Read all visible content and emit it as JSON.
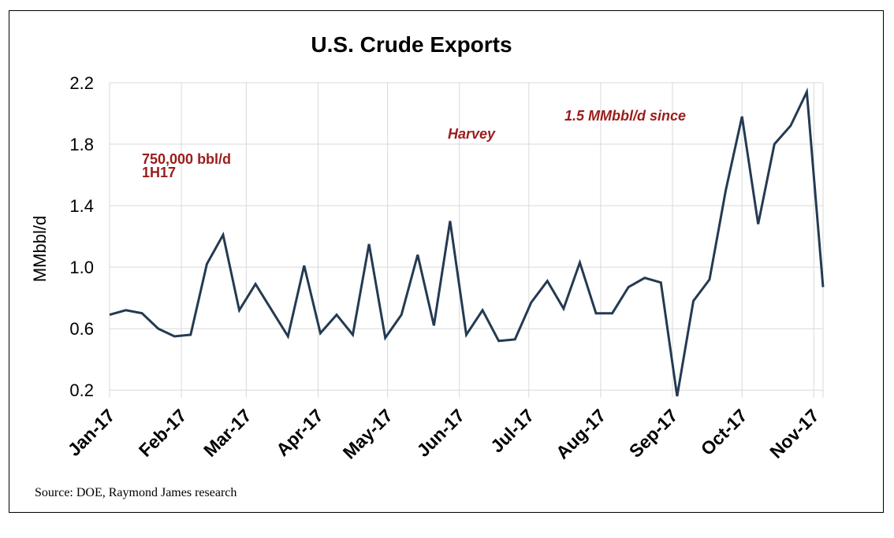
{
  "chart_data": {
    "type": "line",
    "title": "U.S. Crude Exports",
    "ylabel": "MMbbl/d",
    "xlabel": "",
    "ylim": [
      0.15,
      2.2
    ],
    "yticks": [
      0.2,
      0.6,
      1.0,
      1.4,
      1.8,
      2.2
    ],
    "ytick_labels": [
      "0.2",
      "0.6",
      "1.0",
      "1.4",
      "1.8",
      "2.2"
    ],
    "x_tick_labels": [
      "Jan-17",
      "Feb-17",
      "Mar-17",
      "Apr-17",
      "May-17",
      "Jun-17",
      "Jul-17",
      "Aug-17",
      "Sep-17",
      "Oct-17",
      "Nov-17"
    ],
    "grid": "vertical and horizontal",
    "legend": "none",
    "series": [
      {
        "color": "#243a52",
        "x": [
          "2017-01-01",
          "2017-01-08",
          "2017-01-15",
          "2017-01-22",
          "2017-01-29",
          "2017-02-05",
          "2017-02-12",
          "2017-02-19",
          "2017-02-26",
          "2017-03-05",
          "2017-03-12",
          "2017-03-19",
          "2017-03-26",
          "2017-04-02",
          "2017-04-09",
          "2017-04-16",
          "2017-04-23",
          "2017-04-30",
          "2017-05-07",
          "2017-05-14",
          "2017-05-21",
          "2017-05-28",
          "2017-06-04",
          "2017-06-11",
          "2017-06-18",
          "2017-06-25",
          "2017-07-02",
          "2017-07-09",
          "2017-07-16",
          "2017-07-23",
          "2017-07-30",
          "2017-08-06",
          "2017-08-13",
          "2017-08-20",
          "2017-08-27",
          "2017-09-03",
          "2017-09-10",
          "2017-09-17",
          "2017-09-24",
          "2017-10-01",
          "2017-10-08",
          "2017-10-15",
          "2017-10-22",
          "2017-10-29",
          "2017-11-05"
        ],
        "values": [
          0.69,
          0.72,
          0.7,
          0.6,
          0.55,
          0.56,
          1.02,
          1.21,
          0.72,
          0.89,
          0.72,
          0.55,
          1.01,
          0.57,
          0.69,
          0.56,
          1.15,
          0.54,
          0.69,
          1.08,
          0.62,
          1.3,
          0.56,
          0.72,
          0.52,
          0.53,
          0.77,
          0.91,
          0.73,
          1.03,
          0.7,
          0.7,
          0.87,
          0.93,
          0.9,
          0.16,
          0.78,
          0.92,
          1.5,
          1.98,
          1.28,
          1.8,
          1.92,
          2.14,
          0.87
        ]
      }
    ],
    "annotations": [
      {
        "text": "750,000 bbl/d",
        "color": "#9b1c1c"
      },
      {
        "text": "1H17",
        "color": "#9b1c1c"
      },
      {
        "text": "Harvey",
        "color": "#9b1c1c"
      },
      {
        "text": "1.5 MMbbl/d since",
        "color": "#9b1c1c"
      }
    ]
  },
  "source_note": "Source: DOE, Raymond James research"
}
